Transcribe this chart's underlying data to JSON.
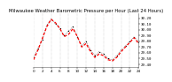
{
  "title": "Milwaukee Weather Barometric Pressure per Hour (Last 24 Hours)",
  "bg_color": "#ffffff",
  "plot_bg": "#ffffff",
  "ylim": [
    29.35,
    30.28
  ],
  "xlim": [
    0,
    24
  ],
  "hours": [
    0,
    1,
    2,
    3,
    4,
    5,
    6,
    7,
    8,
    9,
    10,
    11,
    12,
    13,
    14,
    15,
    16,
    17,
    18,
    19,
    20,
    21,
    22,
    23,
    24
  ],
  "pressure": [
    29.52,
    29.68,
    29.82,
    30.08,
    30.18,
    30.1,
    30.02,
    29.9,
    29.98,
    30.05,
    29.88,
    29.72,
    29.8,
    29.65,
    29.55,
    29.62,
    29.58,
    29.5,
    29.48,
    29.55,
    29.65,
    29.72,
    29.8,
    29.88,
    29.78
  ],
  "pressure_smooth": [
    29.48,
    29.65,
    29.85,
    30.05,
    30.18,
    30.12,
    30.02,
    29.88,
    29.92,
    30.02,
    29.88,
    29.7,
    29.76,
    29.62,
    29.52,
    29.58,
    29.55,
    29.48,
    29.46,
    29.52,
    29.62,
    29.7,
    29.78,
    29.86,
    29.76
  ],
  "line_color": "#000000",
  "smooth_color": "#ff0000",
  "grid_color": "#888888",
  "title_fontsize": 3.8,
  "tick_fontsize": 3.0,
  "yticks": [
    29.4,
    29.5,
    29.6,
    29.7,
    29.8,
    29.9,
    30.0,
    30.1,
    30.2
  ],
  "xtick_step": 2
}
